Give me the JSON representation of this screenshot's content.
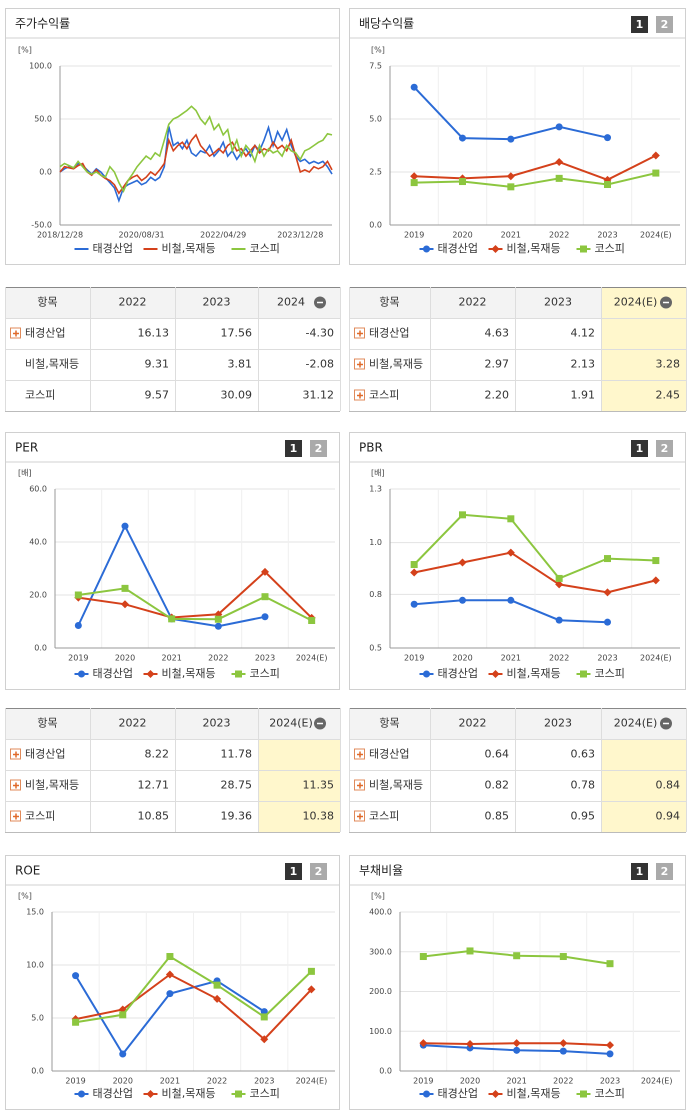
{
  "chart_data": [
    {
      "type": "line",
      "title": "주가수익률",
      "ylabel": "[%]",
      "categories": [
        "2018/12/28",
        null,
        null,
        null,
        null,
        null,
        null,
        null,
        null,
        null,
        null,
        null,
        null,
        null,
        null,
        null,
        null,
        null,
        "2020/08/31",
        null,
        null,
        null,
        null,
        null,
        null,
        null,
        null,
        null,
        null,
        null,
        null,
        null,
        null,
        null,
        null,
        null,
        "2022/04/29",
        null,
        null,
        null,
        null,
        null,
        null,
        null,
        null,
        null,
        null,
        null,
        null,
        null,
        null,
        null,
        null,
        "2023/12/28",
        null,
        null,
        null,
        null,
        null,
        null,
        null
      ],
      "series": [
        {
          "name": "태경산업",
          "color": "#2b6bd6",
          "values": [
            0,
            3,
            5,
            4,
            8,
            6,
            2,
            -2,
            3,
            0,
            -5,
            -10,
            -15,
            -27,
            -15,
            -12,
            -10,
            -8,
            -12,
            -10,
            -5,
            -8,
            -5,
            5,
            43,
            25,
            28,
            22,
            30,
            18,
            15,
            20,
            18,
            25,
            15,
            20,
            28,
            15,
            20,
            12,
            18,
            22,
            15,
            25,
            20,
            30,
            42,
            25,
            38,
            30,
            40,
            25,
            15,
            10,
            12,
            8,
            10,
            8,
            10,
            5,
            -2
          ]
        },
        {
          "name": "비철,목재등",
          "color": "#d4411b",
          "values": [
            0,
            5,
            4,
            3,
            6,
            8,
            0,
            -3,
            2,
            -3,
            -6,
            -8,
            -12,
            -20,
            -14,
            -8,
            -5,
            -3,
            -8,
            -5,
            0,
            -3,
            2,
            8,
            30,
            20,
            25,
            28,
            22,
            30,
            35,
            25,
            20,
            15,
            18,
            22,
            18,
            25,
            28,
            20,
            22,
            15,
            20,
            25,
            18,
            22,
            20,
            28,
            22,
            25,
            20,
            30,
            15,
            0,
            2,
            0,
            5,
            3,
            5,
            10,
            2
          ]
        },
        {
          "name": "코스피",
          "color": "#8cc63f",
          "values": [
            5,
            8,
            6,
            4,
            10,
            5,
            0,
            -2,
            0,
            -3,
            -5,
            5,
            0,
            -10,
            -18,
            -8,
            -2,
            5,
            10,
            15,
            12,
            18,
            15,
            30,
            45,
            50,
            52,
            55,
            58,
            62,
            58,
            50,
            45,
            52,
            40,
            45,
            35,
            40,
            20,
            30,
            15,
            25,
            20,
            10,
            25,
            15,
            22,
            18,
            20,
            15,
            25,
            20,
            18,
            12,
            20,
            22,
            25,
            28,
            30,
            36,
            35
          ]
        }
      ],
      "ylim": [
        -50,
        100
      ],
      "yticks": [
        {
          "value": -50,
          "label": "-50.0"
        },
        {
          "value": 0,
          "label": "0.0"
        },
        {
          "value": 50,
          "label": "50.0"
        },
        {
          "value": 100,
          "label": "100.0"
        }
      ],
      "grid": true
    },
    {
      "type": "line",
      "title": "배당수익률",
      "tabs": [
        "1",
        "2"
      ],
      "ylabel": "[%]",
      "categories": [
        "2019",
        "2020",
        "2021",
        "2022",
        "2023",
        "2024(E)"
      ],
      "series": [
        {
          "name": "태경산업",
          "color": "#2b6bd6",
          "marker": "circle",
          "values": [
            6.5,
            4.1,
            4.05,
            4.63,
            4.12,
            null
          ]
        },
        {
          "name": "비철,목재등",
          "color": "#d4411b",
          "marker": "diamond",
          "values": [
            2.3,
            2.2,
            2.3,
            2.97,
            2.13,
            3.28
          ]
        },
        {
          "name": "코스피",
          "color": "#8cc63f",
          "marker": "square",
          "values": [
            2.0,
            2.05,
            1.8,
            2.2,
            1.91,
            2.45
          ]
        }
      ],
      "ylim": [
        0,
        7.5
      ],
      "yticks": [
        {
          "value": 0,
          "label": "0.0"
        },
        2.5,
        {
          "value": 5,
          "label": "5.0"
        },
        7.5
      ],
      "grid": true
    },
    {
      "type": "line",
      "title": "PER",
      "tabs": [
        "1",
        "2"
      ],
      "ylabel": "[배]",
      "categories": [
        "2019",
        "2020",
        "2021",
        "2022",
        "2023",
        "2024(E)"
      ],
      "series": [
        {
          "name": "태경산업",
          "color": "#2b6bd6",
          "marker": "circle",
          "values": [
            8.5,
            46,
            11,
            8.22,
            11.78,
            null
          ]
        },
        {
          "name": "비철,목재등",
          "color": "#d4411b",
          "marker": "diamond",
          "values": [
            19,
            16.5,
            11.5,
            12.71,
            28.75,
            11.35
          ]
        },
        {
          "name": "코스피",
          "color": "#8cc63f",
          "marker": "square",
          "values": [
            20,
            22.5,
            11,
            10.85,
            19.36,
            10.38
          ]
        }
      ],
      "ylim": [
        0,
        60
      ],
      "yticks": [
        {
          "value": 0,
          "label": "0.0"
        },
        {
          "value": 20,
          "label": "20.0"
        },
        {
          "value": 40,
          "label": "40.0"
        },
        {
          "value": 60,
          "label": "60.0"
        }
      ],
      "grid": true
    },
    {
      "type": "line",
      "title": "PBR",
      "tabs": [
        "1",
        "2"
      ],
      "ylabel": "[배]",
      "categories": [
        "2019",
        "2020",
        "2021",
        "2022",
        "2023",
        "2024(E)"
      ],
      "series": [
        {
          "name": "태경산업",
          "color": "#2b6bd6",
          "marker": "circle",
          "values": [
            0.72,
            0.74,
            0.74,
            0.64,
            0.63,
            null
          ]
        },
        {
          "name": "비철,목재등",
          "color": "#d4411b",
          "marker": "diamond",
          "values": [
            0.88,
            0.93,
            0.98,
            0.82,
            0.78,
            0.84
          ]
        },
        {
          "name": "코스피",
          "color": "#8cc63f",
          "marker": "square",
          "values": [
            0.92,
            1.17,
            1.15,
            0.85,
            0.95,
            0.94
          ]
        }
      ],
      "ylim": [
        0.5,
        1.3
      ],
      "yticks": [
        0.5,
        {
          "value": 0.77,
          "label": "0.8"
        },
        {
          "value": 1.03,
          "label": "1.0"
        },
        1.3
      ],
      "grid": true
    },
    {
      "type": "line",
      "title": "ROE",
      "tabs": [
        "1",
        "2"
      ],
      "ylabel": "[%]",
      "categories": [
        "2019",
        "2020",
        "2021",
        "2022",
        "2023",
        "2024(E)"
      ],
      "series": [
        {
          "name": "태경산업",
          "color": "#2b6bd6",
          "marker": "circle",
          "values": [
            9,
            1.6,
            7.3,
            8.5,
            5.6,
            null
          ]
        },
        {
          "name": "비철,목재등",
          "color": "#d4411b",
          "marker": "diamond",
          "values": [
            4.9,
            5.8,
            9.1,
            6.8,
            3.0,
            7.7
          ]
        },
        {
          "name": "코스피",
          "color": "#8cc63f",
          "marker": "square",
          "values": [
            4.6,
            5.3,
            10.8,
            8.1,
            5.1,
            9.4
          ]
        }
      ],
      "ylim": [
        0,
        15
      ],
      "yticks": [
        {
          "value": 0,
          "label": "0.0"
        },
        {
          "value": 5,
          "label": "5.0"
        },
        {
          "value": 10,
          "label": "10.0"
        },
        {
          "value": 15,
          "label": "15.0"
        }
      ],
      "grid": true
    },
    {
      "type": "line",
      "title": "부채비율",
      "tabs": [
        "1",
        "2"
      ],
      "ylabel": "[%]",
      "categories": [
        "2019",
        "2020",
        "2021",
        "2022",
        "2023",
        "2024(E)"
      ],
      "series": [
        {
          "name": "태경산업",
          "color": "#2b6bd6",
          "marker": "circle",
          "values": [
            65,
            58,
            52,
            50,
            43,
            null
          ]
        },
        {
          "name": "비철,목재등",
          "color": "#d4411b",
          "marker": "diamond",
          "values": [
            70,
            68,
            70,
            70,
            65,
            null
          ]
        },
        {
          "name": "코스피",
          "color": "#8cc63f",
          "marker": "square",
          "values": [
            288,
            302,
            290,
            288,
            270,
            null
          ]
        }
      ],
      "ylim": [
        0,
        400
      ],
      "yticks": [
        {
          "value": 0,
          "label": "0.0"
        },
        {
          "value": 100,
          "label": "100.0"
        },
        {
          "value": 200,
          "label": "200.0"
        },
        {
          "value": 300,
          "label": "300.0"
        },
        {
          "value": 400,
          "label": "400.0"
        }
      ],
      "grid": true
    }
  ],
  "tables": [
    {
      "header": [
        "항목",
        "2022",
        "2023",
        "2024"
      ],
      "highlight_last": false,
      "highlight_header": false,
      "rows": [
        {
          "label": "태경산업",
          "icon": true,
          "cells": [
            "16.13",
            "17.56",
            "-4.30"
          ]
        },
        {
          "label": "비철,목재등",
          "icon": false,
          "cells": [
            "9.31",
            "3.81",
            "-2.08"
          ]
        },
        {
          "label": "코스피",
          "icon": false,
          "cells": [
            "9.57",
            "30.09",
            "31.12"
          ]
        }
      ]
    },
    {
      "header": [
        "항목",
        "2022",
        "2023",
        "2024(E)"
      ],
      "highlight_last": true,
      "highlight_header": true,
      "rows": [
        {
          "label": "태경산업",
          "icon": true,
          "cells": [
            "4.63",
            "4.12",
            null
          ]
        },
        {
          "label": "비철,목재등",
          "icon": true,
          "cells": [
            "2.97",
            "2.13",
            "3.28"
          ]
        },
        {
          "label": "코스피",
          "icon": true,
          "cells": [
            "2.20",
            "1.91",
            "2.45"
          ]
        }
      ]
    },
    {
      "header": [
        "항목",
        "2022",
        "2023",
        "2024(E)"
      ],
      "highlight_last": true,
      "highlight_header": false,
      "rows": [
        {
          "label": "태경산업",
          "icon": true,
          "cells": [
            "8.22",
            "11.78",
            null
          ]
        },
        {
          "label": "비철,목재등",
          "icon": true,
          "cells": [
            "12.71",
            "28.75",
            "11.35"
          ]
        },
        {
          "label": "코스피",
          "icon": true,
          "cells": [
            "10.85",
            "19.36",
            "10.38"
          ]
        }
      ]
    },
    {
      "header": [
        "항목",
        "2022",
        "2023",
        "2024(E)"
      ],
      "highlight_last": true,
      "highlight_header": false,
      "rows": [
        {
          "label": "태경산업",
          "icon": true,
          "cells": [
            "0.64",
            "0.63",
            null
          ]
        },
        {
          "label": "비철,목재등",
          "icon": true,
          "cells": [
            "0.82",
            "0.78",
            "0.84"
          ]
        },
        {
          "label": "코스피",
          "icon": true,
          "cells": [
            "0.85",
            "0.95",
            "0.94"
          ]
        }
      ]
    }
  ]
}
